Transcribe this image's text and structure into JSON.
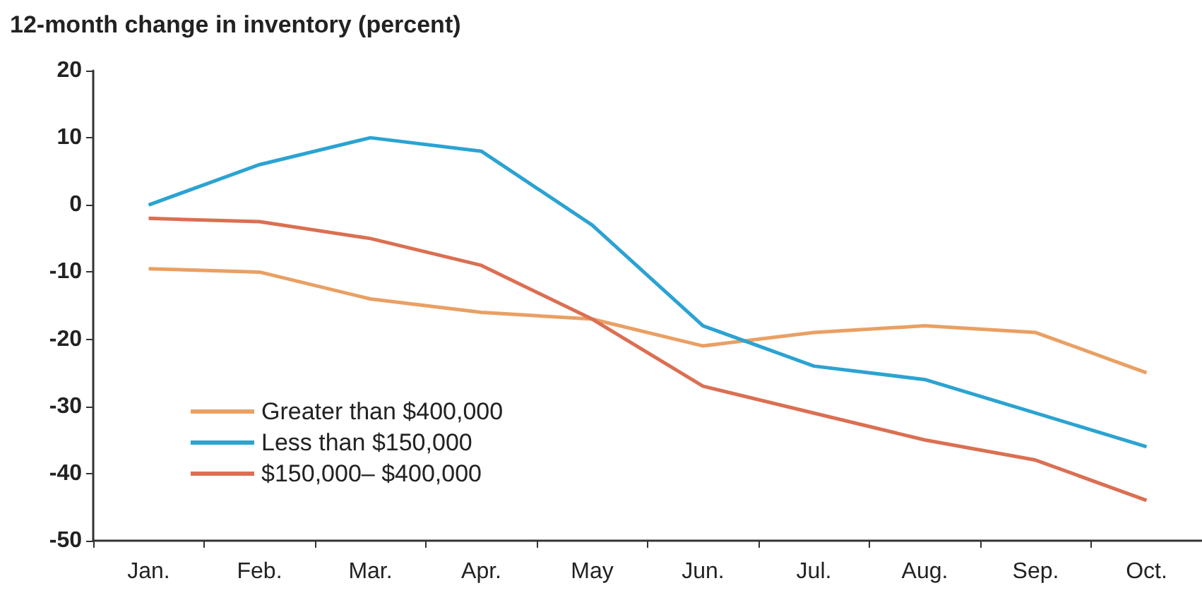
{
  "chart_data": {
    "type": "line",
    "ylabel": "12-month change in inventory (percent)",
    "categories": [
      "Jan.",
      "Feb.",
      "Mar.",
      "Apr.",
      "May",
      "Jun.",
      "Jul.",
      "Aug.",
      "Sep.",
      "Oct."
    ],
    "series": [
      {
        "name": "Greater than $400,000",
        "color": "#e9a063",
        "values": [
          -9.5,
          -10,
          -14,
          -16,
          -17,
          -21,
          -19,
          -18,
          -19,
          -25
        ]
      },
      {
        "name": "Less than $150,000",
        "color": "#2ba3d2",
        "values": [
          0,
          6,
          10,
          8,
          -3,
          -18,
          -24,
          -26,
          -31,
          -36
        ]
      },
      {
        "name": "$150,000– $400,000",
        "color": "#db6f52",
        "values": [
          -2,
          -2.5,
          -5,
          -9,
          -17,
          -27,
          -31,
          -35,
          -38,
          -44
        ]
      }
    ],
    "ylim": [
      -50,
      20
    ],
    "yticks": [
      -50,
      -40,
      -30,
      -20,
      -10,
      0,
      10,
      20
    ],
    "grid": false,
    "legend": "bottom left",
    "marker": "none",
    "line_style": "solid"
  }
}
